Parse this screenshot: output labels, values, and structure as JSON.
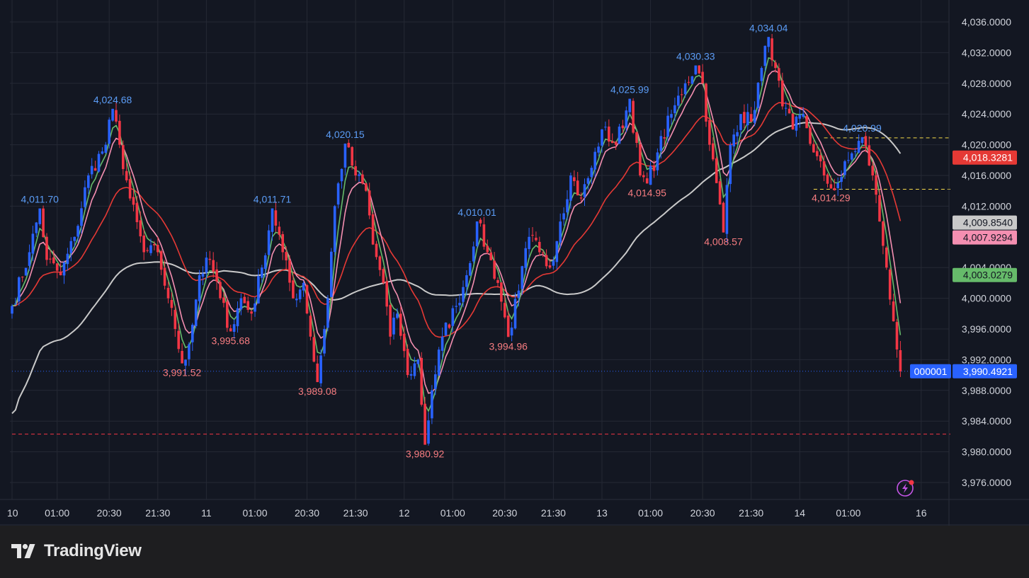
{
  "brand": {
    "name": "TradingView",
    "logo_icon": "tradingview-logo-icon",
    "lightning_icon": "lightning-bolt-icon"
  },
  "colors": {
    "background": "#131722",
    "grid": "#252934",
    "bull": "#2962ff",
    "bear": "#f23645",
    "ma_fast": "#66bb6a",
    "ma_mid": "#f48fb1",
    "ma_slow": "#e53935",
    "ma_long": "#c9c9c9",
    "high_label": "#5b9cf6",
    "low_label": "#f77c80"
  },
  "chart_data": {
    "type": "candlestick",
    "ylim": [
      3973.0,
      4039.0
    ],
    "y_ticks": [
      "4,036.0000",
      "4,032.0000",
      "4,028.0000",
      "4,024.0000",
      "4,020.0000",
      "4,016.0000",
      "4,012.0000",
      "4,004.0000",
      "4,000.0000",
      "3,996.0000",
      "3,992.0000",
      "3,988.0000",
      "3,984.0000",
      "3,980.0000",
      "3,976.0000"
    ],
    "x_ticks": [
      {
        "label": "10",
        "bar": 0
      },
      {
        "label": "01:00",
        "bar": 13
      },
      {
        "label": "20:30",
        "bar": 28
      },
      {
        "label": "21:30",
        "bar": 42
      },
      {
        "label": "11",
        "bar": 56
      },
      {
        "label": "01:00",
        "bar": 70
      },
      {
        "label": "20:30",
        "bar": 85
      },
      {
        "label": "21:30",
        "bar": 99
      },
      {
        "label": "12",
        "bar": 113
      },
      {
        "label": "01:00",
        "bar": 127
      },
      {
        "label": "20:30",
        "bar": 142
      },
      {
        "label": "21:30",
        "bar": 156
      },
      {
        "label": "13",
        "bar": 170
      },
      {
        "label": "01:00",
        "bar": 184
      },
      {
        "label": "20:30",
        "bar": 199
      },
      {
        "label": "21:30",
        "bar": 213
      },
      {
        "label": "14",
        "bar": 227
      },
      {
        "label": "01:00",
        "bar": 241
      },
      {
        "label": "16",
        "bar": 262
      }
    ],
    "waypoints": [
      [
        0,
        3999
      ],
      [
        5,
        4006
      ],
      [
        8,
        4011.7
      ],
      [
        10,
        4005
      ],
      [
        14,
        4003
      ],
      [
        18,
        4008
      ],
      [
        22,
        4016
      ],
      [
        27,
        4020
      ],
      [
        29,
        4024.68
      ],
      [
        31,
        4020
      ],
      [
        34,
        4013
      ],
      [
        38,
        4006
      ],
      [
        42,
        4006
      ],
      [
        45,
        4000
      ],
      [
        47,
        3996
      ],
      [
        49,
        3991.52
      ],
      [
        51,
        3994
      ],
      [
        54,
        4003
      ],
      [
        57,
        4005
      ],
      [
        60,
        4000
      ],
      [
        63,
        3995.68
      ],
      [
        66,
        4000
      ],
      [
        69,
        3998
      ],
      [
        72,
        4004
      ],
      [
        75,
        4011.71
      ],
      [
        78,
        4006
      ],
      [
        81,
        4000
      ],
      [
        84,
        4002
      ],
      [
        86,
        3995
      ],
      [
        88,
        3989.08
      ],
      [
        91,
        4000
      ],
      [
        93,
        4012
      ],
      [
        96,
        4020.15
      ],
      [
        99,
        4016
      ],
      [
        102,
        4014
      ],
      [
        104,
        4007
      ],
      [
        107,
        4002
      ],
      [
        109,
        3995
      ],
      [
        111,
        3998
      ],
      [
        114,
        3990
      ],
      [
        117,
        3992
      ],
      [
        119,
        3980.92
      ],
      [
        121,
        3988
      ],
      [
        124,
        3995
      ],
      [
        128,
        3999
      ],
      [
        131,
        4003
      ],
      [
        134,
        4010.01
      ],
      [
        137,
        4006
      ],
      [
        140,
        4002
      ],
      [
        143,
        3994.96
      ],
      [
        146,
        4001
      ],
      [
        149,
        4008
      ],
      [
        152,
        4006
      ],
      [
        155,
        4004
      ],
      [
        158,
        4010
      ],
      [
        161,
        4016
      ],
      [
        164,
        4013
      ],
      [
        167,
        4017
      ],
      [
        170,
        4022
      ],
      [
        174,
        4020
      ],
      [
        178,
        4025.99
      ],
      [
        181,
        4016
      ],
      [
        183,
        4014.95
      ],
      [
        186,
        4019
      ],
      [
        190,
        4024
      ],
      [
        194,
        4028
      ],
      [
        197,
        4030.33
      ],
      [
        199,
        4028
      ],
      [
        201,
        4020
      ],
      [
        203,
        4015
      ],
      [
        205,
        4008.57
      ],
      [
        207,
        4020
      ],
      [
        210,
        4024
      ],
      [
        213,
        4023
      ],
      [
        216,
        4030
      ],
      [
        218,
        4034.04
      ],
      [
        220,
        4030
      ],
      [
        222,
        4025
      ],
      [
        225,
        4022
      ],
      [
        228,
        4024
      ],
      [
        231,
        4019
      ],
      [
        234,
        4016
      ],
      [
        236,
        4014.29
      ],
      [
        238,
        4015
      ],
      [
        241,
        4018
      ],
      [
        245,
        4020.99
      ],
      [
        248,
        4016
      ],
      [
        250,
        4010
      ],
      [
        252,
        4004
      ],
      [
        254,
        3997
      ],
      [
        256,
        3990.49
      ]
    ],
    "moving_averages": [
      {
        "key": "ma_fast",
        "last": "4,003.0279"
      },
      {
        "key": "ma_mid",
        "last": "4,007.9294"
      },
      {
        "key": "ma_slow",
        "last": "4,018.3281"
      },
      {
        "key": "ma_long",
        "last": "4,009.8540"
      }
    ],
    "annotations": [
      {
        "text": "4,011.70",
        "bar": 8,
        "value": 4011.7,
        "kind": "high"
      },
      {
        "text": "4,024.68",
        "bar": 29,
        "value": 4024.68,
        "kind": "high"
      },
      {
        "text": "3,991.52",
        "bar": 49,
        "value": 3991.52,
        "kind": "low"
      },
      {
        "text": "3,995.68",
        "bar": 63,
        "value": 3995.68,
        "kind": "low"
      },
      {
        "text": "4,011.71",
        "bar": 75,
        "value": 4011.71,
        "kind": "high"
      },
      {
        "text": "3,989.08",
        "bar": 88,
        "value": 3989.08,
        "kind": "low"
      },
      {
        "text": "4,020.15",
        "bar": 96,
        "value": 4020.15,
        "kind": "high"
      },
      {
        "text": "3,980.92",
        "bar": 119,
        "value": 3980.92,
        "kind": "low"
      },
      {
        "text": "4,010.01",
        "bar": 134,
        "value": 4010.01,
        "kind": "high"
      },
      {
        "text": "3,994.96",
        "bar": 143,
        "value": 3994.96,
        "kind": "low"
      },
      {
        "text": "4,025.99",
        "bar": 178,
        "value": 4025.99,
        "kind": "high"
      },
      {
        "text": "4,014.95",
        "bar": 183,
        "value": 4014.95,
        "kind": "low"
      },
      {
        "text": "4,030.33",
        "bar": 197,
        "value": 4030.33,
        "kind": "high"
      },
      {
        "text": "4,008.57",
        "bar": 205,
        "value": 4008.57,
        "kind": "low"
      },
      {
        "text": "4,034.04",
        "bar": 218,
        "value": 4034.04,
        "kind": "high"
      },
      {
        "text": "4,014.29",
        "bar": 236,
        "value": 4014.29,
        "kind": "low"
      },
      {
        "text": "4,020.99",
        "bar": 245,
        "value": 4020.99,
        "kind": "high"
      }
    ],
    "level_lines": [
      {
        "value": 4020.9,
        "color": "#f5d94a",
        "style": "dashed",
        "from_bar": 234
      },
      {
        "value": 4014.2,
        "color": "#f5d94a",
        "style": "dashed",
        "from_bar": 231
      },
      {
        "value": 3982.3,
        "color": "#f23645",
        "style": "dashed",
        "from_bar": 0
      },
      {
        "value": 3990.49,
        "color": "#2962ff",
        "style": "dotted",
        "from_bar": 0
      }
    ],
    "last_price": {
      "symbol_label": "000001",
      "value": 3990.4921,
      "text": "3,990.4921"
    }
  }
}
